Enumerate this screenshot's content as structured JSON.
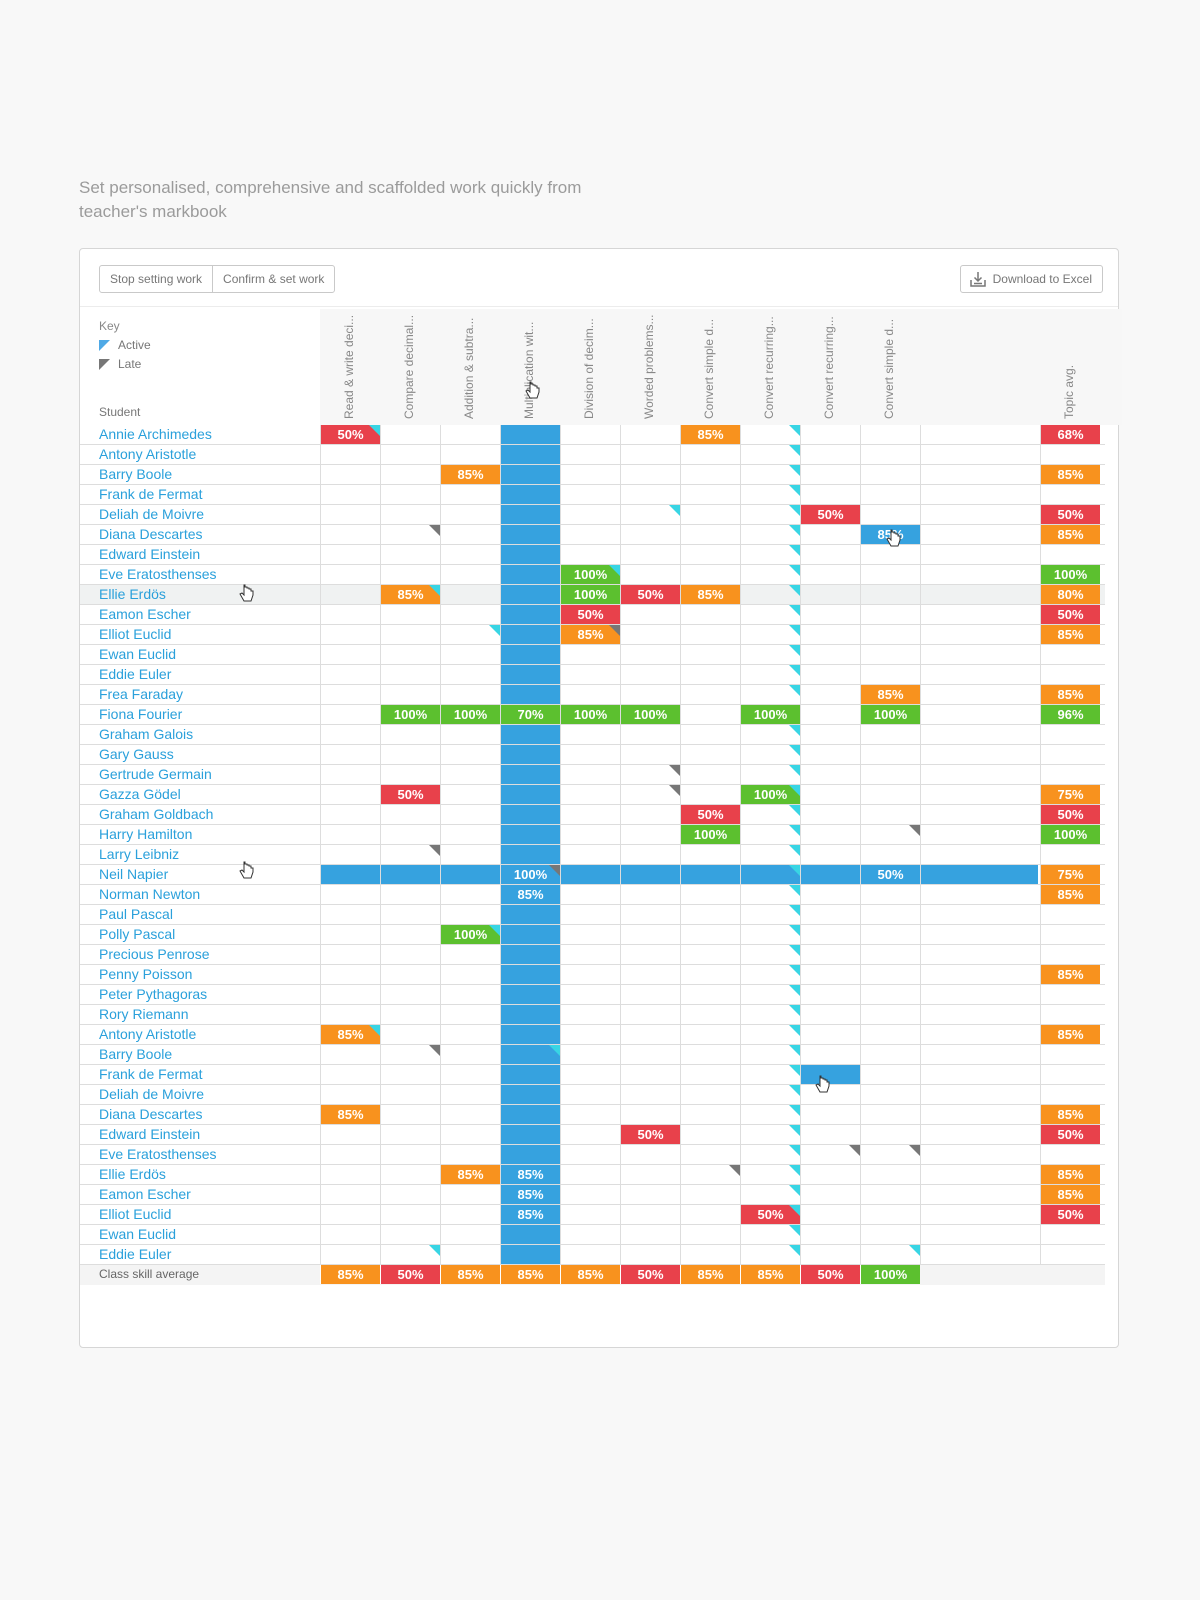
{
  "headline": "Set personalised, comprehensive and scaffolded work quickly from teacher's markbook",
  "toolbar": {
    "stop_label": "Stop setting work",
    "confirm_label": "Confirm & set work",
    "download_label": "Download to Excel"
  },
  "key": {
    "title": "Key",
    "active": "Active",
    "late": "Late"
  },
  "student_header": "Student",
  "columns": [
    "Read & write deci...",
    "Compare decimal...",
    "Addition & subtra...",
    "Multiplication wit...",
    "Division of decim...",
    "Worded problems...",
    "Convert simple d...",
    "Convert recurring...",
    "Convert recurring...",
    "Convert simple d..."
  ],
  "topic_avg_header": "Topic avg.",
  "selected_column": 3,
  "colors": {
    "red": "#e8414b",
    "orange": "#f8921e",
    "green": "#5cc02f",
    "blue": "#36a2df",
    "active": "#38d5e4",
    "late": "#777777"
  },
  "rows": [
    {
      "name": "Annie Archimedes",
      "cells": [
        [
          "r",
          "50%",
          "a"
        ],
        null,
        null,
        null,
        null,
        null,
        [
          "o",
          "85%"
        ],
        [
          "",
          "",
          "a"
        ],
        null,
        null
      ],
      "avg": [
        "r",
        "68%"
      ]
    },
    {
      "name": "Antony Aristotle",
      "cells": [
        null,
        null,
        null,
        null,
        null,
        null,
        null,
        [
          "",
          "",
          "a"
        ],
        null,
        null
      ],
      "avg": null
    },
    {
      "name": "Barry Boole",
      "cells": [
        null,
        null,
        [
          "o",
          "85%"
        ],
        null,
        null,
        null,
        null,
        [
          "",
          "",
          "a"
        ],
        null,
        null
      ],
      "avg": [
        "o",
        "85%"
      ]
    },
    {
      "name": "Frank de Fermat",
      "cells": [
        null,
        null,
        null,
        null,
        null,
        null,
        null,
        [
          "",
          "",
          "a"
        ],
        null,
        null
      ],
      "avg": null
    },
    {
      "name": "Deliah de Moivre",
      "cells": [
        null,
        null,
        null,
        null,
        null,
        [
          "",
          "",
          "a"
        ],
        null,
        [
          "",
          "",
          "a"
        ],
        [
          "r",
          "50%"
        ],
        null
      ],
      "avg": [
        "r",
        "50%"
      ]
    },
    {
      "name": "Diana Descartes",
      "cells": [
        null,
        [
          "",
          "",
          "l"
        ],
        null,
        null,
        null,
        null,
        null,
        [
          "",
          "",
          "a"
        ],
        null,
        [
          "b",
          "85%"
        ]
      ],
      "avg": [
        "o",
        "85%"
      ]
    },
    {
      "name": "Edward Einstein",
      "cells": [
        null,
        null,
        null,
        null,
        null,
        null,
        null,
        [
          "",
          "",
          "a"
        ],
        null,
        null
      ],
      "avg": null
    },
    {
      "name": "Eve Eratosthenses",
      "cells": [
        null,
        null,
        null,
        null,
        [
          "g",
          "100%",
          "a"
        ],
        null,
        null,
        [
          "",
          "",
          "a"
        ],
        null,
        null
      ],
      "avg": [
        "g",
        "100%"
      ]
    },
    {
      "name": "Ellie Erdös",
      "cells": [
        null,
        [
          "o",
          "85%",
          "a"
        ],
        null,
        null,
        [
          "g",
          "100%"
        ],
        [
          "r",
          "50%"
        ],
        [
          "o",
          "85%"
        ],
        [
          "",
          "",
          "a"
        ],
        null,
        null
      ],
      "avg": [
        "o",
        "80%"
      ],
      "hl": true
    },
    {
      "name": "Eamon Escher",
      "cells": [
        null,
        null,
        null,
        null,
        [
          "r",
          "50%"
        ],
        null,
        null,
        [
          "",
          "",
          "a"
        ],
        null,
        null
      ],
      "avg": [
        "r",
        "50%"
      ]
    },
    {
      "name": "Elliot Euclid",
      "cells": [
        null,
        null,
        [
          "",
          "",
          "a"
        ],
        null,
        [
          "o",
          "85%",
          "l"
        ],
        null,
        null,
        [
          "",
          "",
          "a"
        ],
        null,
        null
      ],
      "avg": [
        "o",
        "85%"
      ]
    },
    {
      "name": "Ewan Euclid",
      "cells": [
        null,
        null,
        null,
        null,
        null,
        null,
        null,
        [
          "",
          "",
          "a"
        ],
        null,
        null
      ],
      "avg": null
    },
    {
      "name": "Eddie Euler",
      "cells": [
        null,
        null,
        null,
        null,
        null,
        null,
        null,
        [
          "",
          "",
          "a"
        ],
        null,
        null
      ],
      "avg": null
    },
    {
      "name": "Frea Faraday",
      "cells": [
        null,
        null,
        null,
        null,
        null,
        null,
        null,
        [
          "",
          "",
          "a"
        ],
        null,
        [
          "o",
          "85%"
        ]
      ],
      "avg": [
        "o",
        "85%"
      ]
    },
    {
      "name": "Fiona Fourier",
      "cells": [
        null,
        [
          "g",
          "100%"
        ],
        [
          "g",
          "100%"
        ],
        [
          "g",
          "70%"
        ],
        [
          "g",
          "100%"
        ],
        [
          "g",
          "100%"
        ],
        null,
        [
          "g",
          "100%"
        ],
        null,
        [
          "g",
          "100%"
        ]
      ],
      "avg": [
        "g",
        "96%"
      ]
    },
    {
      "name": "Graham Galois",
      "cells": [
        null,
        null,
        null,
        null,
        null,
        null,
        null,
        [
          "",
          "",
          "a"
        ],
        null,
        null
      ],
      "avg": null
    },
    {
      "name": "Gary Gauss",
      "cells": [
        null,
        null,
        null,
        null,
        null,
        null,
        null,
        [
          "",
          "",
          "a"
        ],
        null,
        null
      ],
      "avg": null
    },
    {
      "name": "Gertrude Germain",
      "cells": [
        null,
        null,
        null,
        null,
        null,
        [
          "",
          "",
          "l"
        ],
        null,
        [
          "",
          "",
          "a"
        ],
        null,
        null
      ],
      "avg": null
    },
    {
      "name": "Gazza Gödel",
      "cells": [
        null,
        [
          "r",
          "50%"
        ],
        null,
        null,
        null,
        [
          "",
          "",
          "l"
        ],
        null,
        [
          "g",
          "100%",
          "a"
        ],
        null,
        null
      ],
      "avg": [
        "o",
        "75%"
      ]
    },
    {
      "name": "Graham Goldbach",
      "cells": [
        null,
        null,
        null,
        null,
        null,
        null,
        [
          "r",
          "50%"
        ],
        [
          "",
          "",
          "a"
        ],
        null,
        null
      ],
      "avg": [
        "r",
        "50%"
      ]
    },
    {
      "name": "Harry Hamilton",
      "cells": [
        null,
        null,
        null,
        null,
        null,
        null,
        [
          "g",
          "100%"
        ],
        [
          "",
          "",
          "a"
        ],
        null,
        [
          "",
          "",
          "l"
        ]
      ],
      "avg": [
        "g",
        "100%"
      ]
    },
    {
      "name": "Larry Leibniz",
      "cells": [
        null,
        [
          "",
          "",
          "l"
        ],
        null,
        null,
        null,
        null,
        null,
        [
          "",
          "",
          "a"
        ],
        null,
        null
      ],
      "avg": null
    },
    {
      "name": "Neil Napier",
      "cells": [
        null,
        null,
        null,
        [
          "b",
          "100%",
          "l"
        ],
        null,
        null,
        null,
        [
          "",
          "",
          "a"
        ],
        null,
        [
          "b",
          "50%"
        ]
      ],
      "avg": [
        "o",
        "75%"
      ],
      "band": true
    },
    {
      "name": "Norman Newton",
      "cells": [
        null,
        null,
        null,
        [
          "b",
          "85%"
        ],
        null,
        null,
        null,
        [
          "",
          "",
          "a"
        ],
        null,
        null
      ],
      "avg": [
        "o",
        "85%"
      ]
    },
    {
      "name": "Paul Pascal",
      "cells": [
        null,
        null,
        null,
        null,
        null,
        null,
        null,
        [
          "",
          "",
          "a"
        ],
        null,
        null
      ],
      "avg": null
    },
    {
      "name": "Polly Pascal",
      "cells": [
        null,
        null,
        [
          "g",
          "100%",
          "a"
        ],
        null,
        null,
        null,
        null,
        [
          "",
          "",
          "a"
        ],
        null,
        null
      ],
      "avg": null
    },
    {
      "name": "Precious Penrose",
      "cells": [
        null,
        null,
        null,
        null,
        null,
        null,
        null,
        [
          "",
          "",
          "a"
        ],
        null,
        null
      ],
      "avg": null
    },
    {
      "name": "Penny Poisson",
      "cells": [
        null,
        null,
        null,
        null,
        null,
        null,
        null,
        [
          "",
          "",
          "a"
        ],
        null,
        null
      ],
      "avg": [
        "o",
        "85%"
      ]
    },
    {
      "name": "Peter Pythagoras",
      "cells": [
        null,
        null,
        null,
        null,
        null,
        null,
        null,
        [
          "",
          "",
          "a"
        ],
        null,
        null
      ],
      "avg": null
    },
    {
      "name": "Rory Riemann",
      "cells": [
        null,
        null,
        null,
        null,
        null,
        null,
        null,
        [
          "",
          "",
          "a"
        ],
        null,
        null
      ],
      "avg": null
    },
    {
      "name": "Antony Aristotle",
      "cells": [
        [
          "o",
          "85%",
          "a"
        ],
        null,
        null,
        null,
        null,
        null,
        null,
        [
          "",
          "",
          "a"
        ],
        null,
        null
      ],
      "avg": [
        "o",
        "85%"
      ]
    },
    {
      "name": "Barry Boole",
      "cells": [
        null,
        [
          "",
          "",
          "l"
        ],
        null,
        [
          "b",
          "",
          "a"
        ],
        null,
        null,
        null,
        [
          "",
          "",
          "a"
        ],
        null,
        null
      ],
      "avg": null
    },
    {
      "name": "Frank de Fermat",
      "cells": [
        null,
        null,
        null,
        null,
        null,
        null,
        null,
        [
          "",
          "",
          "a"
        ],
        [
          "b",
          ""
        ],
        null
      ],
      "avg": null
    },
    {
      "name": "Deliah de Moivre",
      "cells": [
        null,
        null,
        null,
        null,
        null,
        null,
        null,
        [
          "",
          "",
          "a"
        ],
        null,
        null
      ],
      "avg": null
    },
    {
      "name": "Diana Descartes",
      "cells": [
        [
          "o",
          "85%"
        ],
        null,
        null,
        null,
        null,
        null,
        null,
        [
          "",
          "",
          "a"
        ],
        null,
        null
      ],
      "avg": [
        "o",
        "85%"
      ]
    },
    {
      "name": "Edward Einstein",
      "cells": [
        null,
        null,
        null,
        null,
        null,
        [
          "r",
          "50%"
        ],
        null,
        [
          "",
          "",
          "a"
        ],
        null,
        null
      ],
      "avg": [
        "r",
        "50%"
      ]
    },
    {
      "name": "Eve Eratosthenses",
      "cells": [
        null,
        null,
        null,
        null,
        null,
        null,
        null,
        [
          "",
          "",
          "a"
        ],
        [
          "",
          "",
          "l"
        ],
        [
          "",
          "",
          "l"
        ]
      ],
      "avg": null
    },
    {
      "name": "Ellie Erdös",
      "cells": [
        null,
        null,
        [
          "o",
          "85%"
        ],
        [
          "b",
          "85%"
        ],
        null,
        null,
        [
          "",
          "",
          "l"
        ],
        [
          "",
          "",
          "a"
        ],
        null,
        null
      ],
      "avg": [
        "o",
        "85%"
      ]
    },
    {
      "name": "Eamon Escher",
      "cells": [
        null,
        null,
        null,
        [
          "b",
          "85%"
        ],
        null,
        null,
        null,
        [
          "",
          "",
          "a"
        ],
        null,
        null
      ],
      "avg": [
        "o",
        "85%"
      ]
    },
    {
      "name": "Elliot Euclid",
      "cells": [
        null,
        null,
        null,
        [
          "b",
          "85%"
        ],
        null,
        null,
        null,
        [
          "r",
          "50%",
          "a"
        ],
        null,
        null
      ],
      "avg": [
        "r",
        "50%"
      ]
    },
    {
      "name": "Ewan Euclid",
      "cells": [
        null,
        null,
        null,
        null,
        null,
        null,
        null,
        [
          "",
          "",
          "a"
        ],
        null,
        null
      ],
      "avg": null
    },
    {
      "name": "Eddie Euler",
      "cells": [
        null,
        [
          "",
          "",
          "a"
        ],
        null,
        null,
        null,
        null,
        null,
        [
          "",
          "",
          "a"
        ],
        null,
        [
          "",
          "",
          "a"
        ]
      ],
      "avg": null
    }
  ],
  "class_avg": {
    "label": "Class skill average",
    "values": [
      [
        "o",
        "85%"
      ],
      [
        "r",
        "50%"
      ],
      [
        "o",
        "85%"
      ],
      [
        "o",
        "85%"
      ],
      [
        "o",
        "85%"
      ],
      [
        "r",
        "50%"
      ],
      [
        "o",
        "85%"
      ],
      [
        "o",
        "85%"
      ],
      [
        "r",
        "50%"
      ],
      [
        "g",
        "100%"
      ]
    ]
  }
}
